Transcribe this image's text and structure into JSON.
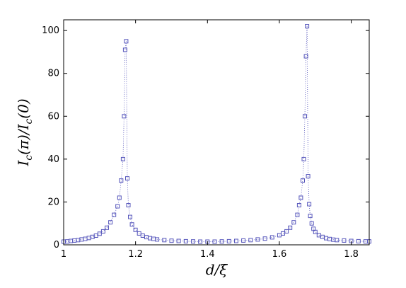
{
  "chart_data": {
    "type": "scatter",
    "xlabel": "d/ξ",
    "ylabel": "I_c(π)/I_c(0)",
    "xlim": [
      1.0,
      1.85
    ],
    "ylim": [
      0,
      105
    ],
    "xticks": [
      1,
      1.2,
      1.4,
      1.6,
      1.8
    ],
    "xtick_labels": [
      "1",
      "1.2",
      "1.4",
      "1.6",
      "1.8"
    ],
    "yticks": [
      0,
      20,
      40,
      60,
      80,
      100
    ],
    "ytick_labels": [
      "0",
      "20",
      "40",
      "60",
      "80",
      "100"
    ],
    "grid": false,
    "marker": "square",
    "line_style": "dotted",
    "color": "#5555bb",
    "series": [
      {
        "x": [
          1.0,
          1.01,
          1.02,
          1.03,
          1.04,
          1.05,
          1.06,
          1.07,
          1.08,
          1.09,
          1.1,
          1.11,
          1.12,
          1.13,
          1.14,
          1.15,
          1.155,
          1.16,
          1.165,
          1.168,
          1.171,
          1.174,
          1.177,
          1.18,
          1.185,
          1.19,
          1.2,
          1.21,
          1.22,
          1.23,
          1.24,
          1.25,
          1.26,
          1.28,
          1.3,
          1.32,
          1.34,
          1.36,
          1.38,
          1.4,
          1.42,
          1.44,
          1.46,
          1.48,
          1.5,
          1.52,
          1.54,
          1.56,
          1.58,
          1.6,
          1.61,
          1.62,
          1.63,
          1.64,
          1.65,
          1.655,
          1.66,
          1.665,
          1.668,
          1.671,
          1.674,
          1.677,
          1.68,
          1.683,
          1.686,
          1.69,
          1.695,
          1.7,
          1.71,
          1.72,
          1.73,
          1.74,
          1.75,
          1.76,
          1.78,
          1.8,
          1.82,
          1.84,
          1.85
        ],
        "y": [
          1.5,
          1.6,
          1.8,
          2.0,
          2.2,
          2.5,
          2.8,
          3.2,
          3.7,
          4.3,
          5.2,
          6.3,
          8.0,
          10.5,
          14.0,
          18.0,
          22.0,
          30.0,
          40.0,
          60.0,
          91.0,
          95.0,
          31.0,
          18.5,
          13.0,
          9.5,
          7.0,
          5.3,
          4.3,
          3.6,
          3.1,
          2.8,
          2.5,
          2.2,
          1.9,
          1.8,
          1.7,
          1.6,
          1.5,
          1.5,
          1.5,
          1.6,
          1.7,
          1.8,
          2.0,
          2.2,
          2.5,
          2.9,
          3.5,
          4.5,
          5.3,
          6.3,
          8.0,
          10.5,
          14.0,
          18.5,
          22.0,
          30.0,
          40.0,
          60.0,
          88.0,
          102.0,
          32.0,
          19.0,
          13.5,
          10.0,
          7.5,
          6.0,
          4.5,
          3.7,
          3.1,
          2.7,
          2.4,
          2.2,
          2.0,
          1.8,
          1.7,
          1.6,
          1.6
        ]
      }
    ]
  }
}
